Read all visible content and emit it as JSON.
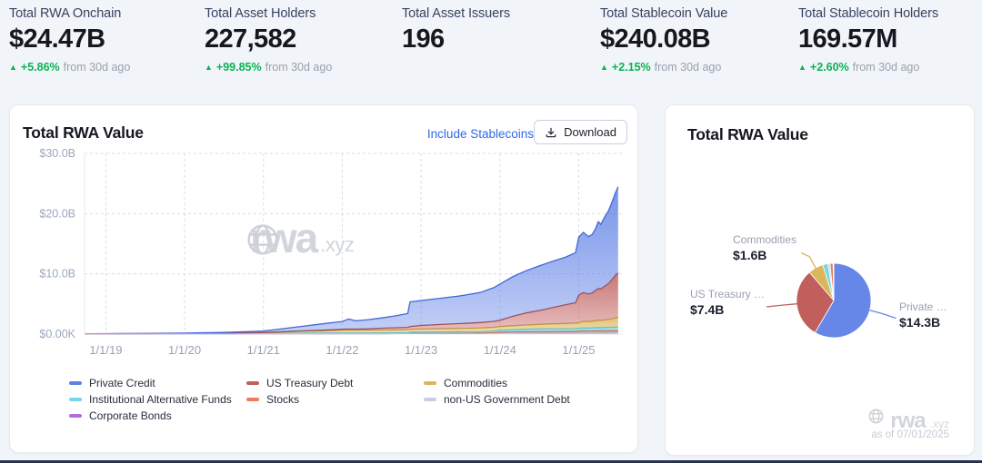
{
  "stats": [
    {
      "label": "Total RWA Onchain",
      "value": "$24.47B",
      "arrow": "▲",
      "change": "+5.86%",
      "period": "from 30d ago"
    },
    {
      "label": "Total Asset Holders",
      "value": "227,582",
      "arrow": "▲",
      "change": "+99.85%",
      "period": "from 30d ago"
    },
    {
      "label": "Total Asset Issuers",
      "value": "196"
    },
    {
      "label": "Total Stablecoin Value",
      "value": "$240.08B",
      "arrow": "▲",
      "change": "+2.15%",
      "period": "from 30d ago"
    },
    {
      "label": "Total Stablecoin Holders",
      "value": "169.57M",
      "arrow": "▲",
      "change": "+2.60%",
      "period": "from 30d ago"
    }
  ],
  "main_chart": {
    "title": "Total RWA Value",
    "include_stablecoins": "Include Stablecoins",
    "download_label": "Download",
    "watermark": {
      "text": "rwa",
      "suffix": ".xyz"
    }
  },
  "pie_card": {
    "title": "Total RWA Value",
    "watermark": {
      "text": "rwa",
      "suffix": ".xyz"
    },
    "as_of": "as of 07/01/2025"
  },
  "chart_data": [
    {
      "type": "area",
      "title": "Total RWA Value",
      "stacked": true,
      "grid": "dashed",
      "legend_position": "bottom",
      "xlabel": "",
      "ylabel": "",
      "xlim": [
        2018.73,
        2025.56
      ],
      "ylim": [
        0,
        30
      ],
      "yticks": [
        {
          "v": 0,
          "label": "$0.00K"
        },
        {
          "v": 10,
          "label": "$10.0B"
        },
        {
          "v": 20,
          "label": "$20.0B"
        },
        {
          "v": 30,
          "label": "$30.0B"
        }
      ],
      "xticks": [
        {
          "v": 2019,
          "label": "1/1/19"
        },
        {
          "v": 2020,
          "label": "1/1/20"
        },
        {
          "v": 2021,
          "label": "1/1/21"
        },
        {
          "v": 2022,
          "label": "1/1/22"
        },
        {
          "v": 2023,
          "label": "1/1/23"
        },
        {
          "v": 2024,
          "label": "1/1/24"
        },
        {
          "v": 2025,
          "label": "1/1/25"
        }
      ],
      "x": [
        2018.73,
        2019.0,
        2019.5,
        2020.0,
        2020.5,
        2021.0,
        2021.25,
        2021.5,
        2021.75,
        2022.0,
        2022.08,
        2022.17,
        2022.33,
        2022.5,
        2022.67,
        2022.83,
        2022.86,
        2023.0,
        2023.25,
        2023.5,
        2023.75,
        2023.92,
        2024.0,
        2024.17,
        2024.33,
        2024.5,
        2024.67,
        2024.83,
        2024.96,
        2025.0,
        2025.06,
        2025.12,
        2025.17,
        2025.21,
        2025.25,
        2025.28,
        2025.33,
        2025.38,
        2025.42,
        2025.46,
        2025.5
      ],
      "series": [
        {
          "name": "Corporate Bonds",
          "color": "#b16ce0",
          "stroke": "#9a4fd0",
          "values": [
            0,
            0,
            0,
            0,
            0,
            0,
            0,
            0,
            0,
            0,
            0,
            0,
            0,
            0,
            0.01,
            0.01,
            0.01,
            0.01,
            0.01,
            0.02,
            0.02,
            0.03,
            0.03,
            0.03,
            0.04,
            0.04,
            0.05,
            0.05,
            0.05,
            0.06,
            0.06,
            0.06,
            0.06,
            0.07,
            0.07,
            0.07,
            0.07,
            0.07,
            0.08,
            0.08,
            0.08
          ]
        },
        {
          "name": "non-US Government Debt",
          "color": "#c5cfe2",
          "stroke": "#aab8d4",
          "values": [
            0,
            0,
            0,
            0,
            0,
            0.01,
            0.02,
            0.02,
            0.02,
            0.02,
            0.02,
            0.02,
            0.02,
            0.02,
            0.02,
            0.02,
            0.03,
            0.03,
            0.04,
            0.05,
            0.06,
            0.1,
            0.2,
            0.22,
            0.22,
            0.22,
            0.22,
            0.22,
            0.22,
            0.22,
            0.22,
            0.22,
            0.22,
            0.22,
            0.22,
            0.22,
            0.22,
            0.22,
            0.22,
            0.22,
            0.22
          ]
        },
        {
          "name": "Stocks",
          "color": "#ee7c5a",
          "stroke": "#e2603e",
          "values": [
            0,
            0,
            0,
            0.01,
            0.01,
            0.02,
            0.03,
            0.03,
            0.03,
            0.04,
            0.04,
            0.04,
            0.04,
            0.04,
            0.04,
            0.04,
            0.08,
            0.09,
            0.1,
            0.1,
            0.11,
            0.12,
            0.12,
            0.13,
            0.15,
            0.16,
            0.18,
            0.19,
            0.2,
            0.22,
            0.28,
            0.25,
            0.26,
            0.27,
            0.28,
            0.28,
            0.29,
            0.3,
            0.3,
            0.31,
            0.32
          ]
        },
        {
          "name": "Institutional Alternative Funds",
          "color": "#74d6e6",
          "stroke": "#4cc3da",
          "values": [
            0.02,
            0.03,
            0.04,
            0.05,
            0.06,
            0.08,
            0.1,
            0.12,
            0.13,
            0.14,
            0.14,
            0.14,
            0.15,
            0.16,
            0.16,
            0.16,
            0.21,
            0.22,
            0.23,
            0.24,
            0.25,
            0.28,
            0.3,
            0.35,
            0.4,
            0.45,
            0.45,
            0.45,
            0.45,
            0.45,
            0.5,
            0.5,
            0.5,
            0.52,
            0.52,
            0.52,
            0.53,
            0.54,
            0.54,
            0.55,
            0.55
          ]
        },
        {
          "name": "Commodities",
          "color": "#dcb65a",
          "stroke": "#c7a03e",
          "values": [
            0.01,
            0.02,
            0.03,
            0.05,
            0.07,
            0.12,
            0.2,
            0.3,
            0.35,
            0.45,
            0.48,
            0.45,
            0.45,
            0.46,
            0.45,
            0.46,
            0.47,
            0.48,
            0.5,
            0.52,
            0.55,
            0.58,
            0.6,
            0.65,
            0.7,
            0.75,
            0.8,
            0.85,
            0.9,
            0.95,
            1.05,
            1.05,
            1.1,
            1.15,
            1.2,
            1.2,
            1.25,
            1.3,
            1.4,
            1.5,
            1.6
          ]
        },
        {
          "name": "US Treasury Debt",
          "color": "#c05f5c",
          "stroke": "#a9463f",
          "values": [
            0,
            0,
            0,
            0,
            0.01,
            0.02,
            0.05,
            0.08,
            0.12,
            0.15,
            0.17,
            0.18,
            0.22,
            0.3,
            0.38,
            0.42,
            0.45,
            0.6,
            0.72,
            0.82,
            0.92,
            1.0,
            1.05,
            1.6,
            2.0,
            2.3,
            2.7,
            3.1,
            3.4,
            4.6,
            4.8,
            4.6,
            4.7,
            5.0,
            5.3,
            5.2,
            5.6,
            6.0,
            6.5,
            7.0,
            7.4
          ]
        },
        {
          "name": "Private Credit",
          "color": "#6081e6",
          "stroke": "#4466d8",
          "values": [
            0.02,
            0.02,
            0.03,
            0.06,
            0.12,
            0.25,
            0.5,
            0.75,
            1.05,
            1.3,
            1.65,
            1.37,
            1.52,
            1.7,
            1.95,
            2.3,
            4.1,
            4.15,
            4.35,
            4.6,
            5.0,
            5.6,
            6.0,
            6.6,
            7.0,
            7.4,
            7.7,
            7.9,
            8.3,
            9.6,
            10.0,
            9.5,
            9.7,
            10.2,
            11.1,
            10.7,
            11.5,
            12.1,
            12.8,
            13.6,
            14.3
          ]
        }
      ],
      "legend_columns": [
        [
          "Private Credit",
          "Institutional Alternative Funds",
          "Corporate Bonds"
        ],
        [
          "US Treasury Debt",
          "Stocks"
        ],
        [
          "Commodities",
          "non-US Government Debt"
        ]
      ]
    },
    {
      "type": "pie",
      "title": "Total RWA Value",
      "as_of": "as of 07/01/2025",
      "slices": [
        {
          "name": "Private Credit",
          "display": "Private …",
          "amount": "$14.3B",
          "value": 14.3,
          "color": "#6687e8"
        },
        {
          "name": "US Treasury Debt",
          "display": "US Treasury …",
          "amount": "$7.4B",
          "value": 7.4,
          "color": "#c05f5c"
        },
        {
          "name": "Commodities",
          "display": "Commodities",
          "amount": "$1.6B",
          "value": 1.6,
          "color": "#dcb65a"
        },
        {
          "name": "Institutional Alternative Funds",
          "value": 0.55,
          "color": "#74d6e6"
        },
        {
          "name": "non-US Government Debt",
          "value": 0.22,
          "color": "#ccd5e4"
        },
        {
          "name": "Stocks",
          "value": 0.32,
          "color": "#ee7c5a"
        },
        {
          "name": "Corporate Bonds",
          "value": 0.08,
          "color": "#b16ce0"
        }
      ]
    }
  ]
}
